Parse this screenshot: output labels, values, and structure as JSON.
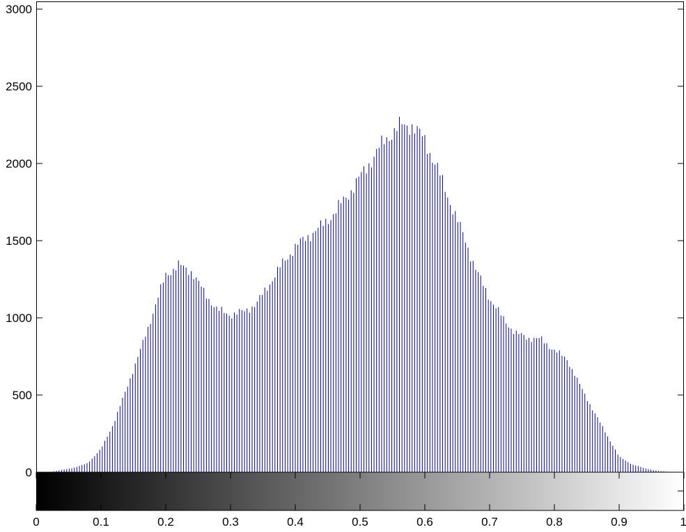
{
  "chart_data": {
    "type": "bar",
    "title": "",
    "xlabel": "",
    "ylabel": "",
    "xlim": [
      0,
      1
    ],
    "ylim": [
      0,
      3050
    ],
    "x_ticks": [
      "0",
      "0.1",
      "0.2",
      "0.3",
      "0.4",
      "0.5",
      "0.6",
      "0.7",
      "0.8",
      "0.9",
      "1"
    ],
    "y_ticks": [
      "0",
      "500",
      "1000",
      "1500",
      "2000",
      "2500",
      "3000"
    ],
    "grid": false,
    "bar_color": "#0000aa",
    "colorbar": {
      "type": "grayscale",
      "from": "#000000",
      "to": "#ffffff",
      "range": [
        0,
        1
      ]
    },
    "bin_count": 256,
    "control_points": [
      [
        0.0,
        0
      ],
      [
        0.02,
        0
      ],
      [
        0.04,
        15
      ],
      [
        0.06,
        30
      ],
      [
        0.08,
        60
      ],
      [
        0.1,
        150
      ],
      [
        0.12,
        320
      ],
      [
        0.14,
        550
      ],
      [
        0.16,
        780
      ],
      [
        0.18,
        1030
      ],
      [
        0.2,
        1280
      ],
      [
        0.22,
        1340
      ],
      [
        0.24,
        1300
      ],
      [
        0.26,
        1160
      ],
      [
        0.28,
        1050
      ],
      [
        0.3,
        1020
      ],
      [
        0.32,
        1040
      ],
      [
        0.34,
        1090
      ],
      [
        0.36,
        1220
      ],
      [
        0.38,
        1350
      ],
      [
        0.4,
        1460
      ],
      [
        0.42,
        1530
      ],
      [
        0.44,
        1590
      ],
      [
        0.46,
        1680
      ],
      [
        0.48,
        1790
      ],
      [
        0.5,
        1910
      ],
      [
        0.52,
        2040
      ],
      [
        0.54,
        2160
      ],
      [
        0.56,
        2240
      ],
      [
        0.58,
        2250
      ],
      [
        0.6,
        2150
      ],
      [
        0.62,
        1960
      ],
      [
        0.64,
        1740
      ],
      [
        0.66,
        1530
      ],
      [
        0.68,
        1300
      ],
      [
        0.7,
        1130
      ],
      [
        0.72,
        1000
      ],
      [
        0.74,
        900
      ],
      [
        0.76,
        870
      ],
      [
        0.78,
        860
      ],
      [
        0.8,
        790
      ],
      [
        0.82,
        730
      ],
      [
        0.84,
        560
      ],
      [
        0.86,
        400
      ],
      [
        0.88,
        250
      ],
      [
        0.9,
        100
      ],
      [
        0.92,
        50
      ],
      [
        0.94,
        25
      ],
      [
        0.96,
        8
      ],
      [
        0.98,
        2
      ],
      [
        1.0,
        0
      ]
    ]
  }
}
